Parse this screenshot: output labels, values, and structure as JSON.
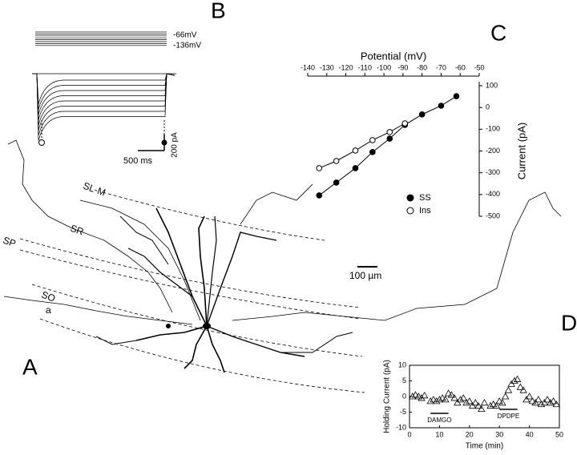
{
  "figure": {
    "panel_labels": [
      "A",
      "B",
      "C",
      "D"
    ],
    "layers": [
      "SL-M",
      "SR",
      "SP",
      "SO",
      "a"
    ],
    "scale_bar_a": "100 µm",
    "voltage_labels": [
      "-66mV",
      "-136mV"
    ],
    "scale_bar_b": [
      "200 pA",
      "500 ms"
    ]
  },
  "chart_data": [
    {
      "type": "line",
      "x_label": "Potential (mV)",
      "y_label": "Current (pA)",
      "x": [
        -134,
        -125,
        -115,
        -106,
        -97,
        -89,
        -80,
        -70,
        -62
      ],
      "series": [
        {
          "name": "SS",
          "color": "#000000",
          "marker": "filled",
          "values": [
            -404,
            -345,
            -279,
            -205,
            -143,
            -80,
            -32,
            8,
            52
          ]
        },
        {
          "name": "Ins",
          "color": "#000000",
          "marker": "open",
          "values": [
            -279,
            -246,
            -198,
            -150,
            -113,
            -73,
            null,
            null,
            null
          ]
        }
      ],
      "xlim": [
        -140,
        -50
      ],
      "xticks": [
        -140,
        -130,
        -120,
        -110,
        -100,
        -90,
        -80,
        -70,
        -60,
        -50
      ],
      "ylim": [
        -500,
        100
      ],
      "yticks": [
        -500,
        -400,
        -300,
        -200,
        -100,
        0,
        100
      ]
    },
    {
      "type": "scatter",
      "x_label": "Time (min)",
      "y_label": "Holding Current (pA)",
      "x": [
        1,
        2,
        3,
        4,
        5,
        7,
        8,
        9,
        10,
        11,
        12,
        13,
        14,
        15,
        16,
        17,
        18,
        19,
        20,
        21,
        22,
        23,
        24,
        25,
        27,
        28,
        29,
        30,
        31,
        32,
        33,
        34,
        35,
        36,
        37,
        38,
        39,
        40,
        41,
        42,
        43,
        44,
        45,
        46,
        47,
        48,
        49
      ],
      "values": [
        0,
        0.5,
        0,
        -0.5,
        0.3,
        -1.5,
        -1,
        -1.5,
        -1,
        -0.5,
        -1,
        1,
        0.5,
        -0.5,
        -2,
        -1,
        -0.5,
        -2,
        -1.5,
        -3,
        -2,
        -3,
        -4,
        -2,
        -3,
        -2.5,
        -3,
        -1.5,
        -2,
        0,
        2,
        4,
        5,
        5.5,
        3,
        2,
        -1,
        0,
        -1.5,
        -2,
        -1,
        -2.5,
        -2,
        -1,
        -2,
        -1.5,
        -2.5
      ],
      "xlim": [
        0,
        50
      ],
      "xticks": [
        0,
        10,
        20,
        30,
        40,
        50
      ],
      "ylim": [
        -10,
        10
      ],
      "yticks": [
        -10,
        -5,
        0,
        5,
        10
      ],
      "annotations": [
        {
          "text": "DAMGO",
          "start": 7,
          "end": 13
        },
        {
          "text": "DPDPE",
          "start": 30,
          "end": 36
        }
      ]
    }
  ]
}
